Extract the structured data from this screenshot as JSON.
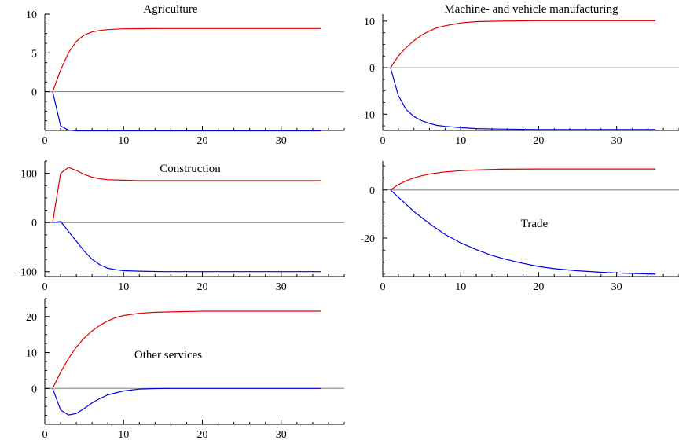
{
  "colors": {
    "red": "#e00000",
    "blue": "#0000e0",
    "zero_line": "#808080"
  },
  "chart_data": [
    {
      "type": "line",
      "title": "Agriculture",
      "title_pos": "top-center",
      "xlim": [
        0,
        38
      ],
      "ylim": [
        -5,
        10
      ],
      "xticks": [
        0,
        10,
        20,
        30
      ],
      "yticks": [
        0,
        5,
        10
      ],
      "zero_line": true,
      "series": [
        {
          "color": "red",
          "x": [
            1,
            2,
            3,
            4,
            5,
            6,
            7,
            8,
            9,
            10,
            12,
            15,
            20,
            25,
            30,
            35
          ],
          "values": [
            0,
            2.8,
            5.0,
            6.5,
            7.3,
            7.7,
            7.9,
            8.0,
            8.05,
            8.1,
            8.12,
            8.15,
            8.15,
            8.15,
            8.15,
            8.15
          ]
        },
        {
          "color": "blue",
          "x": [
            1,
            2,
            3,
            4,
            5,
            10,
            20,
            30,
            35
          ],
          "values": [
            0,
            -4.4,
            -4.95,
            -5.05,
            -5.05,
            -5.05,
            -5.05,
            -5.05,
            -5.05
          ]
        }
      ]
    },
    {
      "type": "line",
      "title": "Machine- and vehicle manufacturing",
      "title_pos": "top-center",
      "xlim": [
        0,
        38
      ],
      "ylim": [
        -13.5,
        11.5
      ],
      "xticks": [
        0,
        10,
        20,
        30
      ],
      "yticks": [
        -10,
        0,
        10
      ],
      "zero_line": true,
      "series": [
        {
          "color": "red",
          "x": [
            1,
            2,
            3,
            4,
            5,
            6,
            7,
            8,
            10,
            12,
            15,
            20,
            25,
            30,
            35
          ],
          "values": [
            0,
            2.5,
            4.3,
            5.8,
            7.0,
            7.9,
            8.6,
            9.0,
            9.6,
            9.9,
            10.0,
            10.1,
            10.1,
            10.1,
            10.1
          ]
        },
        {
          "color": "blue",
          "x": [
            1,
            2,
            3,
            4,
            5,
            6,
            7,
            8,
            10,
            12,
            15,
            20,
            25,
            30,
            35
          ],
          "values": [
            0,
            -6.0,
            -9.0,
            -10.5,
            -11.4,
            -12.0,
            -12.4,
            -12.6,
            -12.9,
            -13.1,
            -13.2,
            -13.3,
            -13.3,
            -13.3,
            -13.3
          ]
        }
      ]
    },
    {
      "type": "line",
      "title": "Construction",
      "title_pos": "top-center",
      "xlim": [
        0,
        38
      ],
      "ylim": [
        -110,
        125
      ],
      "xticks": [
        0,
        10,
        20,
        30
      ],
      "yticks": [
        -100,
        0,
        100
      ],
      "zero_line": true,
      "series": [
        {
          "color": "red",
          "x": [
            1,
            2,
            3,
            4,
            5,
            6,
            7,
            8,
            10,
            12,
            15,
            20,
            25,
            30,
            35
          ],
          "values": [
            0,
            100,
            112,
            106,
            98,
            92,
            89,
            87,
            86,
            85,
            85,
            85,
            85,
            85,
            85
          ]
        },
        {
          "color": "blue",
          "x": [
            1,
            2,
            3,
            4,
            5,
            6,
            7,
            8,
            9,
            10,
            12,
            15,
            20,
            25,
            30,
            35
          ],
          "values": [
            0,
            2,
            -18,
            -38,
            -58,
            -75,
            -86,
            -93,
            -96,
            -98,
            -99,
            -100,
            -100,
            -100,
            -100,
            -100
          ]
        }
      ]
    },
    {
      "type": "line",
      "title": "Trade",
      "title_pos": "center-right",
      "xlim": [
        0,
        38
      ],
      "ylim": [
        -36,
        12
      ],
      "xticks": [
        0,
        10,
        20,
        30
      ],
      "yticks": [
        -20,
        0
      ],
      "zero_line": true,
      "series": [
        {
          "color": "red",
          "x": [
            1,
            2,
            3,
            4,
            5,
            6,
            8,
            10,
            12,
            15,
            20,
            25,
            30,
            35
          ],
          "values": [
            0,
            2.2,
            3.8,
            5.0,
            5.9,
            6.6,
            7.5,
            8.0,
            8.3,
            8.6,
            8.7,
            8.7,
            8.7,
            8.7
          ]
        },
        {
          "color": "blue",
          "x": [
            1,
            2,
            3,
            4,
            5,
            6,
            8,
            10,
            12,
            14,
            16,
            18,
            20,
            22,
            25,
            28,
            30,
            35
          ],
          "values": [
            0,
            -3,
            -6,
            -9,
            -11.5,
            -14,
            -18.5,
            -22,
            -24.8,
            -27.2,
            -29.0,
            -30.5,
            -31.8,
            -32.7,
            -33.6,
            -34.2,
            -34.5,
            -35.0
          ]
        }
      ]
    },
    {
      "type": "line",
      "title": "Other services",
      "title_pos": "center",
      "xlim": [
        0,
        38
      ],
      "ylim": [
        -10,
        25
      ],
      "xticks": [
        0,
        10,
        20,
        30
      ],
      "yticks": [
        0,
        10,
        20
      ],
      "zero_line": true,
      "series": [
        {
          "color": "red",
          "x": [
            1,
            2,
            3,
            4,
            5,
            6,
            7,
            8,
            9,
            10,
            12,
            14,
            16,
            20,
            25,
            30,
            35
          ],
          "values": [
            0,
            4.5,
            8.3,
            11.5,
            14.0,
            16.0,
            17.6,
            18.8,
            19.7,
            20.3,
            20.9,
            21.2,
            21.3,
            21.5,
            21.5,
            21.5,
            21.5
          ]
        },
        {
          "color": "blue",
          "x": [
            1,
            2,
            3,
            4,
            5,
            6,
            7,
            8,
            10,
            12,
            14,
            16,
            20,
            25,
            30,
            35
          ],
          "values": [
            0,
            -6.0,
            -7.4,
            -7.0,
            -5.6,
            -4.0,
            -2.8,
            -1.8,
            -0.7,
            -0.2,
            -0.05,
            0,
            0,
            0,
            0,
            0
          ]
        }
      ]
    }
  ]
}
